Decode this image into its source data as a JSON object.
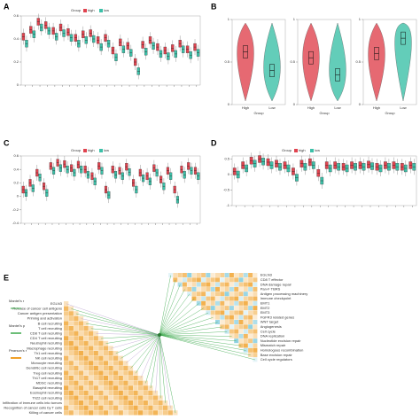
{
  "panels": [
    "A",
    "B",
    "C",
    "D",
    "E"
  ],
  "chart_data": [
    {
      "type": "box",
      "legend_title": "Group",
      "categories": [
        null,
        null,
        null,
        null,
        null,
        null,
        null,
        null,
        null,
        null,
        null,
        null,
        null,
        null,
        null,
        null,
        null,
        null,
        null,
        null,
        null,
        null,
        null,
        null
      ],
      "series": [
        {
          "name": "high",
          "color": "#e0434f",
          "values": [
            0.42,
            0.48,
            0.55,
            0.52,
            0.47,
            0.5,
            0.46,
            0.41,
            0.44,
            0.45,
            0.39,
            0.41,
            0.3,
            0.37,
            0.34,
            0.2,
            0.35,
            0.39,
            0.33,
            0.3,
            0.32,
            0.36,
            0.31,
            0.33
          ]
        },
        {
          "name": "low",
          "color": "#3cc0a8",
          "values": [
            0.36,
            0.44,
            0.5,
            0.47,
            0.42,
            0.45,
            0.41,
            0.36,
            0.39,
            0.4,
            0.33,
            0.36,
            0.24,
            0.31,
            0.28,
            0.12,
            0.29,
            0.34,
            0.27,
            0.25,
            0.27,
            0.31,
            0.26,
            0.28
          ]
        }
      ],
      "ylim": [
        0,
        0.6
      ],
      "yticks": [
        0,
        0.2,
        0.4,
        0.6
      ]
    },
    {
      "type": "violin",
      "categories": [
        "High",
        "Low"
      ],
      "x_label": "Group",
      "colors": [
        "#e0434f",
        "#3cc0a8"
      ],
      "values": [
        0.62,
        0.4
      ],
      "ylim": [
        0,
        1
      ],
      "yticks": [
        0,
        0.5,
        1
      ]
    },
    {
      "type": "violin",
      "categories": [
        "High",
        "Low"
      ],
      "x_label": "Group",
      "colors": [
        "#e0434f",
        "#3cc0a8"
      ],
      "values": [
        0.55,
        0.35
      ],
      "ylim": [
        0,
        1
      ],
      "yticks": [
        0,
        0.5,
        1
      ]
    },
    {
      "type": "violin",
      "categories": [
        "High",
        "Low"
      ],
      "x_label": "Group",
      "colors": [
        "#e0434f",
        "#3cc0a8"
      ],
      "values": [
        0.6,
        0.78
      ],
      "ylim": [
        0,
        1
      ],
      "yticks": [
        0,
        0.5,
        1
      ]
    },
    {
      "type": "box",
      "legend_title": "Group",
      "categories": [
        null,
        null,
        null,
        null,
        null,
        null,
        null,
        null,
        null,
        null,
        null,
        null,
        null,
        null,
        null,
        null,
        null,
        null,
        null,
        null,
        null,
        null,
        null,
        null,
        null,
        null
      ],
      "series": [
        {
          "name": "high",
          "color": "#e0434f",
          "values": [
            0.1,
            0.2,
            0.35,
            0.15,
            0.45,
            0.5,
            0.48,
            0.42,
            0.47,
            0.4,
            0.3,
            0.45,
            0.1,
            0.4,
            0.38,
            0.44,
            0.2,
            0.35,
            0.3,
            0.42,
            0.25,
            0.38,
            0.1,
            0.4,
            0.45,
            0.38
          ]
        },
        {
          "name": "low",
          "color": "#3cc0a8",
          "values": [
            0.05,
            0.12,
            0.28,
            0.05,
            0.38,
            0.42,
            0.4,
            0.35,
            0.4,
            0.32,
            0.22,
            0.38,
            0.02,
            0.32,
            0.3,
            0.36,
            0.1,
            0.27,
            0.22,
            0.35,
            0.15,
            0.3,
            -0.05,
            0.32,
            0.38,
            0.3
          ]
        }
      ],
      "ylim": [
        -0.4,
        0.6
      ],
      "yticks": [
        -0.4,
        -0.2,
        0,
        0.2,
        0.4,
        0.6
      ]
    },
    {
      "type": "box",
      "legend_title": "Group",
      "categories": [
        null,
        null,
        null,
        null,
        null,
        null,
        null,
        null,
        null,
        null,
        null,
        null,
        null,
        null,
        null,
        null,
        null,
        null,
        null,
        null,
        null,
        null
      ],
      "series": [
        {
          "name": "high",
          "color": "#e0434f",
          "values": [
            0.1,
            0.3,
            0.45,
            0.5,
            0.4,
            0.35,
            0.3,
            0.1,
            0.35,
            0.4,
            0.05,
            0.3,
            0.3,
            0.25,
            0.3,
            0.3,
            0.32,
            0.25,
            0.3,
            0.3,
            0.25,
            0.3
          ]
        },
        {
          "name": "low",
          "color": "#3cc0a8",
          "values": [
            0.0,
            0.2,
            0.35,
            0.42,
            0.3,
            0.25,
            0.2,
            -0.1,
            0.25,
            0.3,
            -0.2,
            0.2,
            0.25,
            0.2,
            0.25,
            0.25,
            0.27,
            0.2,
            0.25,
            0.25,
            0.2,
            0.25
          ]
        }
      ],
      "ylim": [
        -1,
        0.6
      ],
      "yticks": [
        -1,
        -0.5,
        0,
        0.5
      ]
    }
  ],
  "heatmap": {
    "left_labels": [
      "EGLN3",
      "Release of cancer cell antigens",
      "Cancer antigen presentation",
      "Priming and activation",
      "B cell recruiting",
      "T cell recruiting",
      "CD8 T cell recruiting",
      "CD4 T cell recruiting",
      "Neutrophil recruiting",
      "Macrophage recruiting",
      "Th1 cell recruiting",
      "NK cell recruiting",
      "Monocyte recruiting",
      "Dendritic cell recruiting",
      "Treg cell recruiting",
      "Th17 cell recruiting",
      "MDSC recruiting",
      "Basophil recruiting",
      "Eosinophil recruiting",
      "Th22 cell recruiting",
      "Infiltration of immune cells into tumors",
      "Recognition of cancer cells by T cells",
      "Killing of cancer cells"
    ],
    "right_labels": [
      "EGLN3",
      "CD8 T effector",
      "DNA damage repair",
      "Pan-F TBRS",
      "Antigen processing machinery",
      "Immune checkpoint",
      "EMT1",
      "EMT2",
      "EMT3",
      "FGFR3 related genes",
      "WNT target",
      "Angiogenesis",
      "Cell cycle",
      "DNA replication",
      "Nucleotide excision repair",
      "Mismatch repair",
      "Homologous recombination",
      "Base excision repair",
      "Cell cycle regulators"
    ],
    "legend_titles": [
      "Mantel's r",
      "Mantel's p",
      "Pearson's r"
    ]
  }
}
